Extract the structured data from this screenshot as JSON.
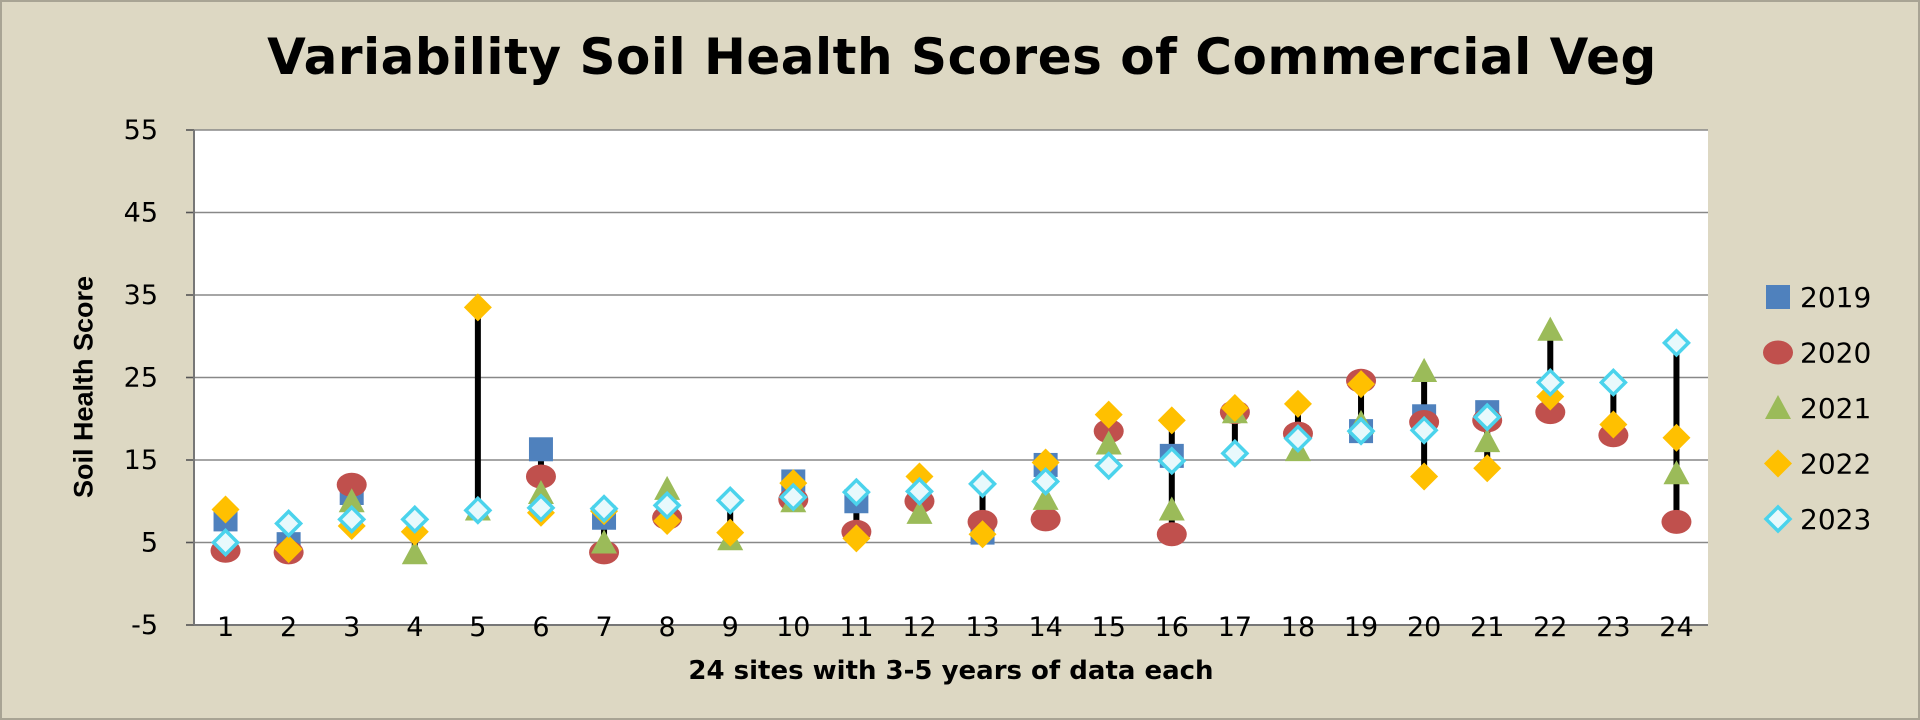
{
  "chart_data": {
    "type": "scatter",
    "title": "Variability Soil Health Scores of Commercial Veg",
    "xlabel": "24 sites with 3-5 years of data each",
    "ylabel": "Soil Health Score",
    "ylim": [
      -5,
      55
    ],
    "yticks": [
      -5,
      5,
      15,
      25,
      35,
      45,
      55
    ],
    "categories": [
      "1",
      "2",
      "3",
      "4",
      "5",
      "6",
      "7",
      "8",
      "9",
      "10",
      "11",
      "12",
      "13",
      "14",
      "15",
      "16",
      "17",
      "18",
      "19",
      "20",
      "21",
      "22",
      "23",
      "24"
    ],
    "grid": true,
    "legend_position": "right",
    "range_bars": true,
    "series": [
      {
        "name": "2019",
        "marker": "square",
        "color": "#4f81bd",
        "values": [
          7.8,
          4.8,
          11,
          null,
          null,
          16.3,
          8,
          null,
          null,
          12.4,
          10,
          null,
          6.2,
          14.4,
          null,
          15.5,
          null,
          null,
          18.5,
          20.3,
          20.8,
          null,
          null,
          null
        ]
      },
      {
        "name": "2020",
        "marker": "circle",
        "color": "#c0504d",
        "values": [
          4,
          3.8,
          12,
          null,
          null,
          13,
          3.8,
          8,
          null,
          10.2,
          6.3,
          10,
          7.5,
          7.8,
          18.5,
          6,
          20.8,
          18.2,
          24.6,
          19.6,
          19.8,
          20.8,
          18,
          7.5
        ]
      },
      {
        "name": "2021",
        "marker": "triangle",
        "color": "#9bbb59",
        "values": [
          null,
          null,
          10,
          3.7,
          9,
          11,
          5,
          11.5,
          5.4,
          10,
          null,
          8.6,
          null,
          10.3,
          17,
          9,
          20.8,
          16.2,
          19.5,
          25.8,
          17.3,
          30.8,
          null,
          13.4
        ]
      },
      {
        "name": "2022",
        "marker": "diamond",
        "color": "#ffc000",
        "values": [
          9,
          4.2,
          7,
          6.3,
          33.5,
          8.6,
          8.8,
          7.6,
          6.2,
          12.2,
          5.5,
          13,
          6,
          14.7,
          20.5,
          19.8,
          21.3,
          21.8,
          24.2,
          13,
          14,
          22.7,
          19.3,
          17.7
        ]
      },
      {
        "name": "2023",
        "marker": "diamond-outline",
        "color": "#4bd3ec",
        "values": [
          5,
          7.3,
          7.8,
          7.8,
          8.9,
          9.2,
          9.1,
          9.5,
          10.1,
          10.5,
          11.1,
          11.2,
          12.1,
          12.4,
          14.3,
          14.9,
          15.8,
          17.6,
          18.5,
          18.6,
          20.2,
          24.4,
          24.4,
          29.2
        ]
      }
    ]
  }
}
